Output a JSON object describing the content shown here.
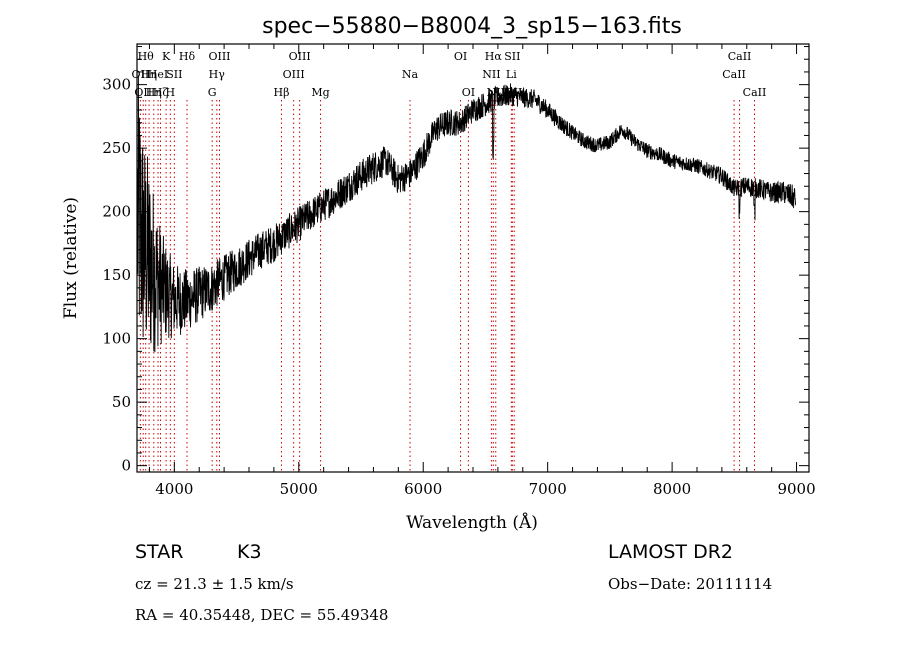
{
  "chart_data": {
    "type": "line",
    "title": "spec−55880−B8004_3_sp15−163.fits",
    "xlabel": "Wavelength (Å)",
    "ylabel": "Flux (relative)",
    "xlim": [
      3700,
      9100
    ],
    "ylim": [
      -5,
      332
    ],
    "x_ticks": [
      4000,
      5000,
      6000,
      7000,
      8000,
      9000
    ],
    "y_ticks": [
      0,
      50,
      100,
      150,
      200,
      250,
      300
    ],
    "grid": false,
    "series": [
      {
        "x": [
          3700,
          3760,
          3800,
          3850,
          3900,
          3950,
          4000,
          4100,
          4200,
          4300,
          4400,
          4500,
          4600,
          4700,
          4800,
          4900,
          5000,
          5100,
          5200,
          5300,
          5400,
          5500,
          5600,
          5700,
          5800,
          5900,
          6000,
          6100,
          6200,
          6300,
          6400,
          6500,
          6600,
          6700,
          6800,
          6900,
          7000,
          7100,
          7200,
          7300,
          7400,
          7500,
          7600,
          7700,
          7800,
          7900,
          8000,
          8100,
          8200,
          8300,
          8400,
          8500,
          8600,
          8700,
          8800,
          8900,
          9000
        ],
        "y": [
          200,
          170,
          160,
          150,
          140,
          135,
          130,
          130,
          135,
          140,
          148,
          155,
          163,
          170,
          175,
          183,
          190,
          198,
          205,
          212,
          220,
          228,
          235,
          240,
          225,
          230,
          245,
          265,
          270,
          270,
          280,
          285,
          290,
          292,
          290,
          288,
          280,
          270,
          262,
          255,
          252,
          255,
          265,
          255,
          248,
          245,
          240,
          238,
          236,
          232,
          228,
          218,
          220,
          218,
          215,
          215,
          210
        ],
        "noise": [
          120,
          90,
          80,
          60,
          45,
          35,
          30,
          25,
          22,
          20,
          18,
          17,
          16,
          15,
          15,
          14,
          14,
          13,
          13,
          13,
          13,
          13,
          13,
          12,
          12,
          12,
          12,
          11,
          11,
          10,
          10,
          10,
          9,
          9,
          8,
          8,
          7,
          7,
          6,
          6,
          6,
          6,
          6,
          6,
          6,
          6,
          6,
          6,
          6,
          6,
          7,
          7,
          8,
          8,
          8,
          9,
          10
        ]
      }
    ],
    "line_markers": [
      {
        "x": 3727,
        "row": 1,
        "label": "OII"
      },
      {
        "x": 3750,
        "row": 2,
        "label": "OII"
      },
      {
        "x": 3770,
        "row": 0,
        "label": "Hθ"
      },
      {
        "x": 3797,
        "row": 1,
        "label": "Hη"
      },
      {
        "x": 3835,
        "row": 2,
        "label": "Hη"
      },
      {
        "x": 3869,
        "row": 1,
        "label": "HeI"
      },
      {
        "x": 3889,
        "row": 2,
        "label": "Hζ"
      },
      {
        "x": 3934,
        "row": 0,
        "label": "K"
      },
      {
        "x": 3968,
        "row": 2,
        "label": "H"
      },
      {
        "x": 4000,
        "row": 1,
        "label": "SII"
      },
      {
        "x": 4102,
        "row": 0,
        "label": "Hδ"
      },
      {
        "x": 4304,
        "row": 2,
        "label": "G"
      },
      {
        "x": 4341,
        "row": 1,
        "label": "Hγ"
      },
      {
        "x": 4363,
        "row": 0,
        "label": "OIII"
      },
      {
        "x": 4861,
        "row": 2,
        "label": "Hβ"
      },
      {
        "x": 4959,
        "row": 1,
        "label": "OIII"
      },
      {
        "x": 5007,
        "row": 0,
        "label": "OIII"
      },
      {
        "x": 5175,
        "row": 2,
        "label": "Mg"
      },
      {
        "x": 5894,
        "row": 1,
        "label": "Na"
      },
      {
        "x": 6300,
        "row": 0,
        "label": "OI"
      },
      {
        "x": 6363,
        "row": 2,
        "label": "OI"
      },
      {
        "x": 6548,
        "row": 1,
        "label": "NII"
      },
      {
        "x": 6563,
        "row": 0,
        "label": "Hα"
      },
      {
        "x": 6583,
        "row": 2,
        "label": "NII"
      },
      {
        "x": 6708,
        "row": 1,
        "label": "Li"
      },
      {
        "x": 6716,
        "row": 0,
        "label": "SII"
      },
      {
        "x": 6731,
        "row": 2,
        "label": "SII"
      },
      {
        "x": 8498,
        "row": 1,
        "label": "CaII"
      },
      {
        "x": 8542,
        "row": 0,
        "label": "CaII"
      },
      {
        "x": 8662,
        "row": 2,
        "label": "CaII"
      }
    ]
  },
  "info": {
    "object_class": "STAR",
    "subclass": "K3",
    "survey": "LAMOST DR2",
    "cz": "cz = 21.3 ± 1.5 km/s",
    "obs_date": "Obs−Date: 20111114",
    "coords": "RA =  40.35448, DEC =  55.49348"
  },
  "colors": {
    "spectrum": "#000000",
    "marker": "#d40000",
    "axes": "#000000",
    "background": "#ffffff"
  }
}
